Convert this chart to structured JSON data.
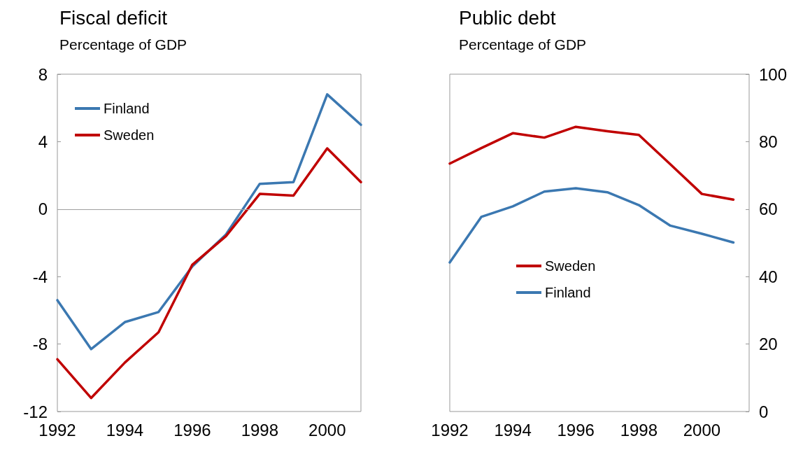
{
  "chart_data": [
    {
      "type": "line",
      "title": "Fiscal deficit",
      "subtitle": "Percentage of GDP",
      "x": [
        1992,
        1993,
        1994,
        1995,
        1996,
        1997,
        1998,
        1999,
        2000,
        2001
      ],
      "xlim": [
        1992,
        2001
      ],
      "xticks": [
        1992,
        1994,
        1996,
        1998,
        2000
      ],
      "ylim": [
        -12,
        8
      ],
      "yticks": [
        -12,
        -8,
        -4,
        0,
        4,
        8
      ],
      "grid": false,
      "legend": "top left",
      "marker": "none",
      "line_style": "solid",
      "ref_lines": [
        {
          "axis": "y",
          "value": 0,
          "color": "#a0a0a0"
        }
      ],
      "series": [
        {
          "name": "Finland",
          "color": "#3b78b1",
          "values": [
            -5.4,
            -8.3,
            -6.7,
            -6.1,
            -3.4,
            -1.5,
            1.5,
            1.6,
            6.8,
            5.0
          ]
        },
        {
          "name": "Sweden",
          "color": "#c00000",
          "values": [
            -8.9,
            -11.2,
            -9.1,
            -7.3,
            -3.3,
            -1.6,
            0.9,
            0.8,
            3.6,
            1.6
          ]
        }
      ]
    },
    {
      "type": "line",
      "title": "Public debt",
      "subtitle": "Percentage of GDP",
      "x": [
        1992,
        1993,
        1994,
        1995,
        1996,
        1997,
        1998,
        1999,
        2000,
        2001
      ],
      "xlim": [
        1992,
        2001.5
      ],
      "xticks": [
        1992,
        1994,
        1996,
        1998,
        2000
      ],
      "y2lim": [
        0,
        100
      ],
      "y2ticks": [
        0,
        20,
        40,
        60,
        80,
        100
      ],
      "grid": false,
      "legend": "left",
      "marker": "none",
      "line_style": "solid",
      "series": [
        {
          "name": "Sweden",
          "color": "#c00000",
          "axis": "y2",
          "values": [
            73.5,
            78.1,
            82.5,
            81.2,
            84.4,
            83.1,
            82.0,
            73.3,
            64.5,
            62.8
          ]
        },
        {
          "name": "Finland",
          "color": "#3b78b1",
          "axis": "y2",
          "values": [
            44.2,
            57.7,
            60.8,
            65.2,
            66.2,
            65.0,
            61.2,
            55.1,
            52.7,
            50.1
          ]
        }
      ]
    }
  ]
}
